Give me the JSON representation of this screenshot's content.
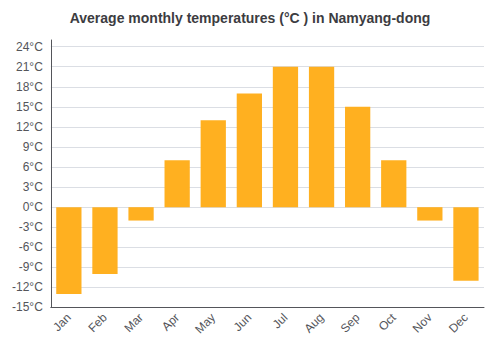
{
  "chart_data": {
    "type": "bar",
    "title": "Average monthly temperatures (°C ) in Namyang-dong",
    "categories": [
      "Jan",
      "Feb",
      "Mar",
      "Apr",
      "May",
      "Jun",
      "Jul",
      "Aug",
      "Sep",
      "Oct",
      "Nov",
      "Dec"
    ],
    "values": [
      -13,
      -10,
      -2,
      7,
      13,
      17,
      21,
      21,
      15,
      7,
      -2,
      -11
    ],
    "color": "#FFB020",
    "ylim": [
      -15,
      25
    ],
    "yticks": [
      {
        "value": -15,
        "label": "-15°C"
      },
      {
        "value": -12,
        "label": "-12°C"
      },
      {
        "value": -9,
        "label": "-9°C"
      },
      {
        "value": -6,
        "label": "-6°C"
      },
      {
        "value": -3,
        "label": "-3°C"
      },
      {
        "value": 0,
        "label": "0°C"
      },
      {
        "value": 3,
        "label": "3°C"
      },
      {
        "value": 6,
        "label": "6°C"
      },
      {
        "value": 9,
        "label": "9°C"
      },
      {
        "value": 12,
        "label": "12°C"
      },
      {
        "value": 15,
        "label": "15°C"
      },
      {
        "value": 18,
        "label": "18°C"
      },
      {
        "value": 21,
        "label": "21°C"
      },
      {
        "value": 24,
        "label": "24°C"
      }
    ],
    "grid": true
  }
}
